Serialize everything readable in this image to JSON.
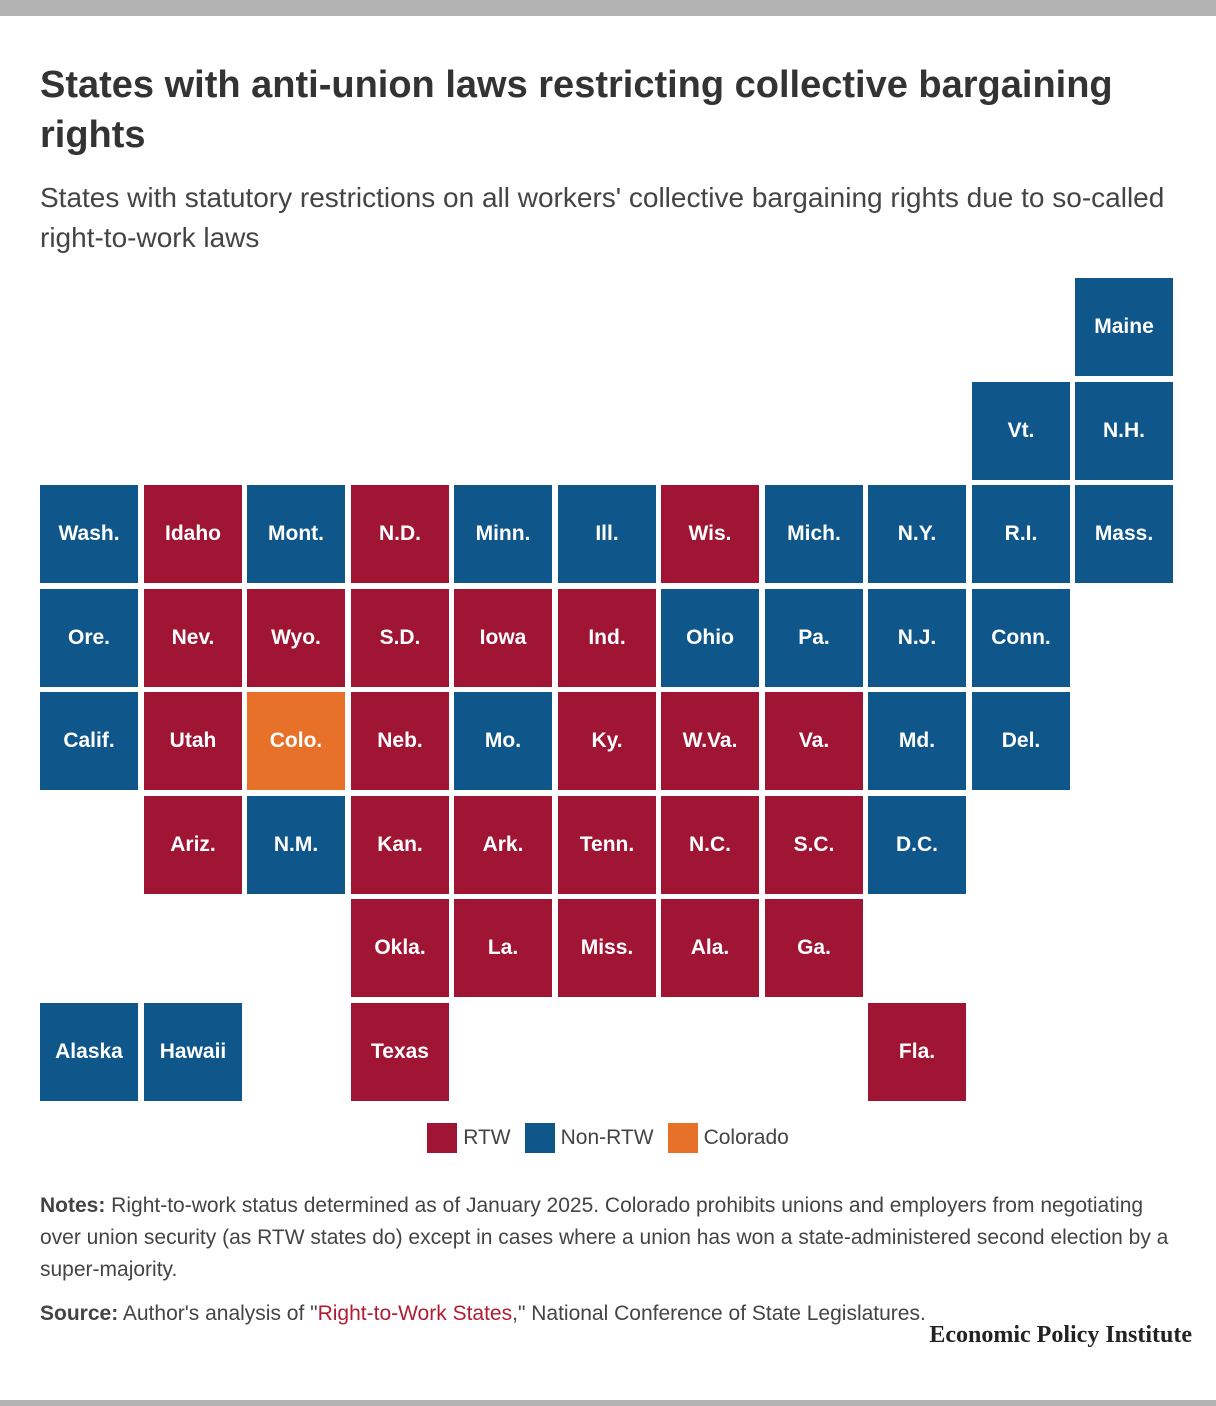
{
  "title": "States with anti-union laws restricting collective bargaining rights",
  "subtitle": "States with statutory restrictions on all workers' collective bargaining rights due to so-called right-to-work laws",
  "colors": {
    "RTW": "#a01434",
    "Non-RTW": "#0f568a",
    "Colorado": "#e8712a"
  },
  "legend": [
    {
      "label": "RTW",
      "category": "RTW"
    },
    {
      "label": "Non-RTW",
      "category": "Non-RTW"
    },
    {
      "label": "Colorado",
      "category": "Colorado"
    }
  ],
  "chart_data": {
    "type": "tile-map",
    "states": [
      {
        "name": "Maine",
        "row": 0,
        "col": 10,
        "category": "Non-RTW"
      },
      {
        "name": "Vt.",
        "row": 1,
        "col": 9,
        "category": "Non-RTW"
      },
      {
        "name": "N.H.",
        "row": 1,
        "col": 10,
        "category": "Non-RTW"
      },
      {
        "name": "Wash.",
        "row": 2,
        "col": 0,
        "category": "Non-RTW"
      },
      {
        "name": "Idaho",
        "row": 2,
        "col": 1,
        "category": "RTW"
      },
      {
        "name": "Mont.",
        "row": 2,
        "col": 2,
        "category": "Non-RTW"
      },
      {
        "name": "N.D.",
        "row": 2,
        "col": 3,
        "category": "RTW"
      },
      {
        "name": "Minn.",
        "row": 2,
        "col": 4,
        "category": "Non-RTW"
      },
      {
        "name": "Ill.",
        "row": 2,
        "col": 5,
        "category": "Non-RTW"
      },
      {
        "name": "Wis.",
        "row": 2,
        "col": 6,
        "category": "RTW"
      },
      {
        "name": "Mich.",
        "row": 2,
        "col": 7,
        "category": "Non-RTW"
      },
      {
        "name": "N.Y.",
        "row": 2,
        "col": 8,
        "category": "Non-RTW"
      },
      {
        "name": "R.I.",
        "row": 2,
        "col": 9,
        "category": "Non-RTW"
      },
      {
        "name": "Mass.",
        "row": 2,
        "col": 10,
        "category": "Non-RTW"
      },
      {
        "name": "Ore.",
        "row": 3,
        "col": 0,
        "category": "Non-RTW"
      },
      {
        "name": "Nev.",
        "row": 3,
        "col": 1,
        "category": "RTW"
      },
      {
        "name": "Wyo.",
        "row": 3,
        "col": 2,
        "category": "RTW"
      },
      {
        "name": "S.D.",
        "row": 3,
        "col": 3,
        "category": "RTW"
      },
      {
        "name": "Iowa",
        "row": 3,
        "col": 4,
        "category": "RTW"
      },
      {
        "name": "Ind.",
        "row": 3,
        "col": 5,
        "category": "RTW"
      },
      {
        "name": "Ohio",
        "row": 3,
        "col": 6,
        "category": "Non-RTW"
      },
      {
        "name": "Pa.",
        "row": 3,
        "col": 7,
        "category": "Non-RTW"
      },
      {
        "name": "N.J.",
        "row": 3,
        "col": 8,
        "category": "Non-RTW"
      },
      {
        "name": "Conn.",
        "row": 3,
        "col": 9,
        "category": "Non-RTW"
      },
      {
        "name": "Calif.",
        "row": 4,
        "col": 0,
        "category": "Non-RTW"
      },
      {
        "name": "Utah",
        "row": 4,
        "col": 1,
        "category": "RTW"
      },
      {
        "name": "Colo.",
        "row": 4,
        "col": 2,
        "category": "Colorado"
      },
      {
        "name": "Neb.",
        "row": 4,
        "col": 3,
        "category": "RTW"
      },
      {
        "name": "Mo.",
        "row": 4,
        "col": 4,
        "category": "Non-RTW"
      },
      {
        "name": "Ky.",
        "row": 4,
        "col": 5,
        "category": "RTW"
      },
      {
        "name": "W.Va.",
        "row": 4,
        "col": 6,
        "category": "RTW"
      },
      {
        "name": "Va.",
        "row": 4,
        "col": 7,
        "category": "RTW"
      },
      {
        "name": "Md.",
        "row": 4,
        "col": 8,
        "category": "Non-RTW"
      },
      {
        "name": "Del.",
        "row": 4,
        "col": 9,
        "category": "Non-RTW"
      },
      {
        "name": "Ariz.",
        "row": 5,
        "col": 1,
        "category": "RTW"
      },
      {
        "name": "N.M.",
        "row": 5,
        "col": 2,
        "category": "Non-RTW"
      },
      {
        "name": "Kan.",
        "row": 5,
        "col": 3,
        "category": "RTW"
      },
      {
        "name": "Ark.",
        "row": 5,
        "col": 4,
        "category": "RTW"
      },
      {
        "name": "Tenn.",
        "row": 5,
        "col": 5,
        "category": "RTW"
      },
      {
        "name": "N.C.",
        "row": 5,
        "col": 6,
        "category": "RTW"
      },
      {
        "name": "S.C.",
        "row": 5,
        "col": 7,
        "category": "RTW"
      },
      {
        "name": "D.C.",
        "row": 5,
        "col": 8,
        "category": "Non-RTW"
      },
      {
        "name": "Okla.",
        "row": 6,
        "col": 3,
        "category": "RTW"
      },
      {
        "name": "La.",
        "row": 6,
        "col": 4,
        "category": "RTW"
      },
      {
        "name": "Miss.",
        "row": 6,
        "col": 5,
        "category": "RTW"
      },
      {
        "name": "Ala.",
        "row": 6,
        "col": 6,
        "category": "RTW"
      },
      {
        "name": "Ga.",
        "row": 6,
        "col": 7,
        "category": "RTW"
      },
      {
        "name": "Alaska",
        "row": 7,
        "col": 0,
        "category": "Non-RTW"
      },
      {
        "name": "Hawaii",
        "row": 7,
        "col": 1,
        "category": "Non-RTW"
      },
      {
        "name": "Texas",
        "row": 7,
        "col": 3,
        "category": "RTW"
      },
      {
        "name": "Fla.",
        "row": 7,
        "col": 8,
        "category": "RTW"
      }
    ]
  },
  "notes": {
    "label": "Notes:",
    "text": " Right-to-work status determined as of January 2025. Colorado prohibits unions and employers from negotiating over union security (as RTW states do) except in cases where a union has won a state-administered second election by a super-majority."
  },
  "source": {
    "label": "Source:",
    "pre": " Author's analysis of \"",
    "link": "Right-to-Work States",
    "post": ",\" National Conference of State Legislatures."
  },
  "brand": "Economic Policy Institute"
}
